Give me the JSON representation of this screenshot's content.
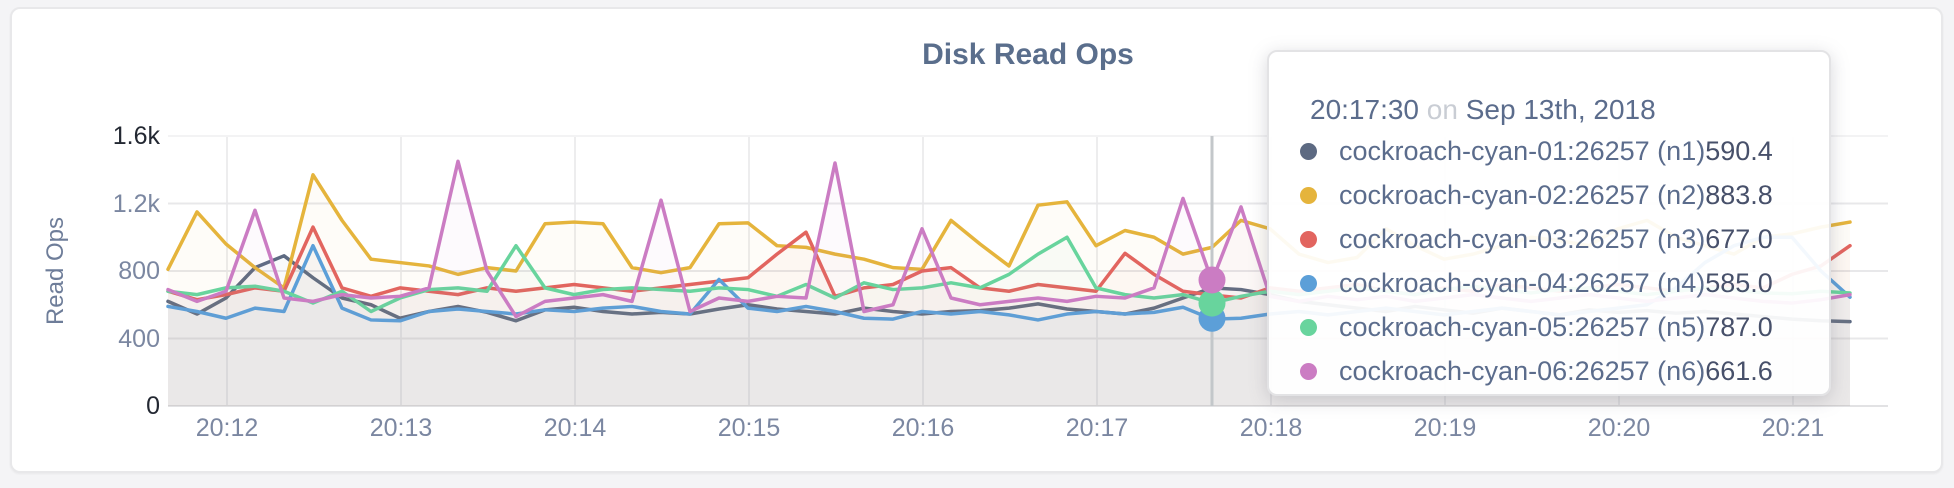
{
  "page_title": "Disk Read Ops",
  "chart_data": {
    "type": "line",
    "title": "Disk Read Ops",
    "ylabel": "Read Ops",
    "ylim": [
      0,
      1600
    ],
    "grid": true,
    "legend_position": "tooltip",
    "x_start": "20:11:40",
    "sample_interval_sec": 10,
    "x_ticks": [
      "20:12",
      "20:13",
      "20:14",
      "20:15",
      "20:16",
      "20:17",
      "20:18",
      "20:19",
      "20:20",
      "20:21"
    ],
    "y_ticks": [
      {
        "label": "1.6k",
        "value": 1600,
        "emphasis": true
      },
      {
        "label": "1.2k",
        "value": 1200,
        "emphasis": false
      },
      {
        "label": "800",
        "value": 800,
        "emphasis": false
      },
      {
        "label": "400",
        "value": 400,
        "emphasis": false
      },
      {
        "label": "0",
        "value": 0,
        "emphasis": true
      }
    ],
    "series": [
      {
        "id": "n1",
        "name": "cockroach-cyan-01:26257 (n1)",
        "color": "#5d6a82",
        "values": [
          620,
          545,
          640,
          820,
          890,
          760,
          640,
          600,
          520,
          560,
          590,
          555,
          505,
          570,
          585,
          560,
          545,
          555,
          545,
          575,
          600,
          575,
          560,
          545,
          580,
          560,
          545,
          560,
          565,
          580,
          605,
          575,
          560,
          545,
          580,
          640,
          700,
          690,
          660,
          620,
          600,
          580,
          560,
          590,
          570,
          550,
          580,
          560,
          540,
          570,
          555,
          565,
          550,
          560,
          545,
          530,
          515,
          505,
          500
        ]
      },
      {
        "id": "n2",
        "name": "cockroach-cyan-02:26257 (n2)",
        "color": "#e5b43c",
        "values": [
          810,
          1150,
          960,
          820,
          700,
          1370,
          1100,
          870,
          850,
          830,
          780,
          820,
          800,
          1080,
          1090,
          1080,
          820,
          790,
          820,
          1080,
          1085,
          950,
          940,
          900,
          870,
          820,
          810,
          1100,
          960,
          830,
          1190,
          1210,
          950,
          1040,
          1000,
          900,
          940,
          1100,
          1050,
          900,
          850,
          880,
          1050,
          950,
          870,
          900,
          950,
          1000,
          980,
          950,
          1050,
          1100,
          1000,
          950,
          900,
          1000,
          1020,
          1060,
          1090
        ]
      },
      {
        "id": "n3",
        "name": "cockroach-cyan-03:26257 (n3)",
        "color": "#e2655f",
        "values": [
          680,
          630,
          660,
          700,
          680,
          1060,
          700,
          650,
          700,
          680,
          660,
          700,
          680,
          700,
          720,
          700,
          680,
          700,
          720,
          740,
          760,
          900,
          1030,
          650,
          700,
          720,
          800,
          820,
          700,
          680,
          720,
          700,
          680,
          905,
          780,
          680,
          658,
          640,
          700,
          680,
          700,
          720,
          680,
          660,
          700,
          680,
          720,
          700,
          680,
          700,
          720,
          700,
          680,
          700,
          720,
          700,
          780,
          830,
          950
        ]
      },
      {
        "id": "n4",
        "name": "cockroach-cyan-04:26257 (n4)",
        "color": "#5c9fd8",
        "values": [
          590,
          560,
          520,
          580,
          560,
          950,
          580,
          510,
          505,
          560,
          575,
          560,
          545,
          570,
          560,
          580,
          590,
          560,
          545,
          750,
          580,
          560,
          590,
          560,
          520,
          515,
          560,
          545,
          560,
          540,
          510,
          545,
          560,
          545,
          555,
          585,
          515,
          520,
          545,
          560,
          540,
          560,
          580,
          560,
          540,
          560,
          580,
          560,
          540,
          560,
          580,
          600,
          700,
          850,
          950,
          1000,
          1000,
          800,
          645
        ]
      },
      {
        "id": "n5",
        "name": "cockroach-cyan-05:26257 (n5)",
        "color": "#68d49d",
        "values": [
          680,
          660,
          700,
          710,
          680,
          610,
          680,
          560,
          640,
          690,
          700,
          680,
          950,
          700,
          660,
          690,
          700,
          690,
          680,
          700,
          690,
          650,
          720,
          640,
          730,
          690,
          700,
          730,
          700,
          780,
          900,
          1000,
          700,
          660,
          640,
          660,
          610,
          650,
          680,
          660,
          680,
          700,
          680,
          660,
          690,
          710,
          690,
          670,
          690,
          700,
          680,
          660,
          680,
          700,
          690,
          670,
          665,
          680,
          670
        ]
      },
      {
        "id": "n6",
        "name": "cockroach-cyan-06:26257 (n6)",
        "color": "#cb7cc3",
        "values": [
          690,
          620,
          680,
          1160,
          640,
          620,
          660,
          640,
          650,
          700,
          1450,
          800,
          530,
          620,
          640,
          660,
          620,
          1220,
          560,
          640,
          620,
          650,
          640,
          1440,
          560,
          600,
          1050,
          640,
          600,
          620,
          640,
          620,
          650,
          640,
          700,
          1230,
          740,
          1180,
          650,
          620,
          650,
          630,
          650,
          620,
          640,
          660,
          640,
          620,
          640,
          660,
          640,
          620,
          640,
          660,
          640,
          620,
          610,
          630,
          660
        ]
      }
    ]
  },
  "tooltip": {
    "time": "20:17:30",
    "separator": "on",
    "date": "Sep 13th, 2018",
    "rows": [
      {
        "name": "cockroach-cyan-01:26257 (n1)",
        "value": "590.4"
      },
      {
        "name": "cockroach-cyan-02:26257 (n2)",
        "value": "883.8"
      },
      {
        "name": "cockroach-cyan-03:26257 (n3)",
        "value": "677.0"
      },
      {
        "name": "cockroach-cyan-04:26257 (n4)",
        "value": "585.0"
      },
      {
        "name": "cockroach-cyan-05:26257 (n5)",
        "value": "787.0"
      },
      {
        "name": "cockroach-cyan-06:26257 (n6)",
        "value": "661.6"
      }
    ]
  },
  "hover": {
    "x_index": 36,
    "dots": [
      {
        "series": "n4",
        "value": 520
      },
      {
        "series": "n5",
        "value": 610
      },
      {
        "series": "n6",
        "value": 747
      }
    ]
  }
}
